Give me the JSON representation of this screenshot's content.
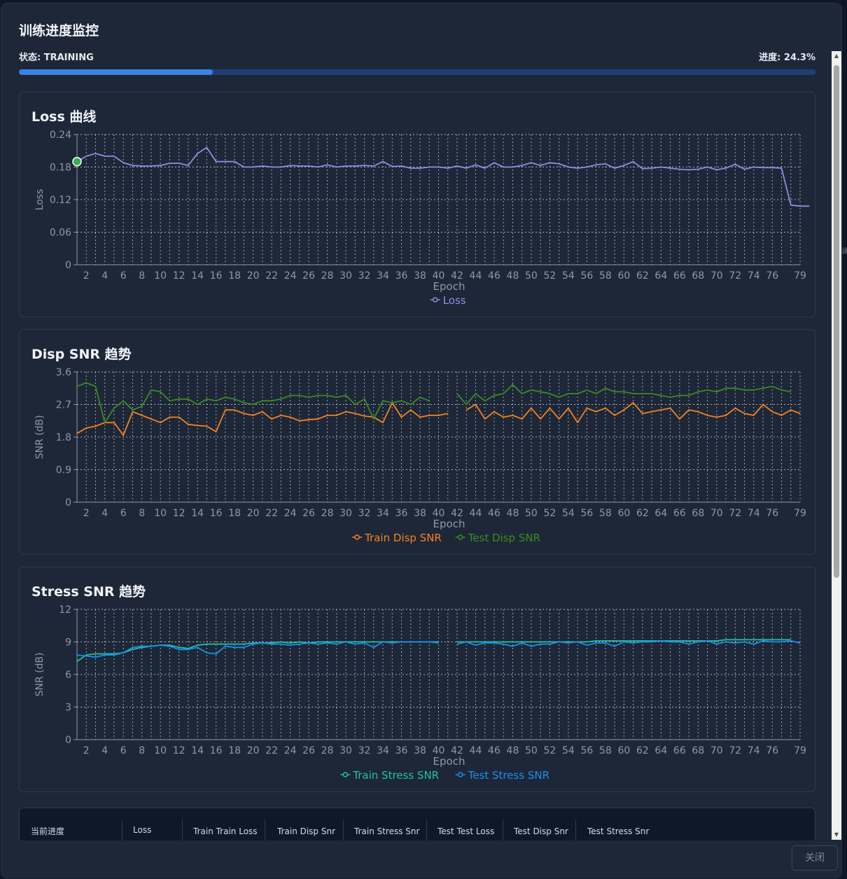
{
  "modal": {
    "title": "训练进度监控",
    "status_label": "状态: TRAINING",
    "progress_label": "进度: 24.3%",
    "progress_fraction": 0.243,
    "close_label": "关闭"
  },
  "epochs_ticks": [
    "2",
    "4",
    "6",
    "8",
    "10",
    "12",
    "14",
    "16",
    "18",
    "20",
    "22",
    "24",
    "26",
    "28",
    "30",
    "32",
    "34",
    "36",
    "38",
    "40",
    "42",
    "44",
    "46",
    "48",
    "50",
    "52",
    "54",
    "56",
    "58",
    "60",
    "62",
    "64",
    "66",
    "68",
    "70",
    "72",
    "74",
    "76",
    "79"
  ],
  "charts": [
    {
      "id": "loss",
      "title": "Loss 曲线",
      "ylabel": "Loss",
      "xlabel": "Epoch",
      "ylim": [
        0,
        0.24
      ],
      "yticks": [
        "0",
        "0.06",
        "0.12",
        "0.18",
        "0.24"
      ],
      "series": [
        {
          "name": "Loss",
          "color": "#8a8fe0",
          "values": [
            0.19,
            0.2,
            0.205,
            0.2,
            0.2,
            0.188,
            0.183,
            0.182,
            0.182,
            0.183,
            0.187,
            0.187,
            0.183,
            0.205,
            0.216,
            0.19,
            0.19,
            0.19,
            0.18,
            0.18,
            0.182,
            0.18,
            0.18,
            0.183,
            0.182,
            0.182,
            0.18,
            0.184,
            0.18,
            0.182,
            0.182,
            0.183,
            0.182,
            0.19,
            0.181,
            0.182,
            0.178,
            0.178,
            0.18,
            0.18,
            0.178,
            0.182,
            0.178,
            0.184,
            0.178,
            0.188,
            0.18,
            0.18,
            0.183,
            0.188,
            0.183,
            0.188,
            0.186,
            0.18,
            0.178,
            0.18,
            0.184,
            0.186,
            0.178,
            0.183,
            0.19,
            0.177,
            0.178,
            0.18,
            0.178,
            0.176,
            0.175,
            0.176,
            0.18,
            0.175,
            0.178,
            0.185,
            0.176,
            0.18,
            0.179,
            0.179,
            0.178,
            0.11,
            0.108,
            0.108
          ]
        }
      ],
      "marker_first_point": true
    },
    {
      "id": "disp",
      "title": "Disp SNR 趋势",
      "ylabel": "SNR (dB)",
      "xlabel": "Epoch",
      "ylim": [
        0,
        3.6
      ],
      "yticks": [
        "0",
        "0.9",
        "1.8",
        "2.7",
        "3.6"
      ],
      "series": [
        {
          "name": "Train Disp SNR",
          "color": "#f5821f",
          "values": [
            1.9,
            2.05,
            2.1,
            2.2,
            2.2,
            1.85,
            2.5,
            2.4,
            2.3,
            2.2,
            2.35,
            2.35,
            2.15,
            2.12,
            2.1,
            1.95,
            2.55,
            2.55,
            2.45,
            2.4,
            2.5,
            2.3,
            2.4,
            2.35,
            2.25,
            2.28,
            2.3,
            2.4,
            2.4,
            2.5,
            2.45,
            2.38,
            2.35,
            2.2,
            2.75,
            2.35,
            2.55,
            2.35,
            2.4,
            2.4,
            2.45,
            null,
            2.55,
            2.7,
            2.3,
            2.5,
            2.35,
            2.4,
            2.3,
            2.6,
            2.3,
            2.6,
            2.3,
            2.6,
            2.2,
            2.6,
            2.5,
            2.6,
            2.4,
            2.55,
            2.75,
            2.45,
            2.5,
            2.55,
            2.6,
            2.3,
            2.55,
            2.5,
            2.4,
            2.35,
            2.4,
            2.6,
            2.45,
            2.4,
            2.7,
            2.5,
            2.4,
            2.55,
            2.45
          ]
        },
        {
          "name": "Test Disp SNR",
          "color": "#3d8b1f",
          "values": [
            3.2,
            3.3,
            3.2,
            2.2,
            2.6,
            2.8,
            2.55,
            2.65,
            3.1,
            3.05,
            2.8,
            2.85,
            2.85,
            2.7,
            2.85,
            2.8,
            2.9,
            2.85,
            2.75,
            2.7,
            2.8,
            2.8,
            2.85,
            2.95,
            2.95,
            2.9,
            2.95,
            2.95,
            2.9,
            2.95,
            2.7,
            2.85,
            2.3,
            2.8,
            2.75,
            2.8,
            2.7,
            2.9,
            2.8,
            null,
            null,
            3.0,
            2.7,
            3.0,
            2.8,
            2.95,
            3.0,
            3.25,
            3.0,
            3.1,
            3.05,
            3.0,
            2.9,
            3.0,
            3.0,
            3.1,
            3.0,
            3.15,
            3.05,
            3.05,
            3.0,
            3.0,
            3.0,
            2.95,
            2.9,
            2.95,
            2.95,
            3.05,
            3.1,
            3.05,
            3.15,
            3.15,
            3.1,
            3.1,
            3.15,
            3.2,
            3.1,
            3.05
          ]
        }
      ]
    },
    {
      "id": "stress",
      "title": "Stress SNR 趋势",
      "ylabel": "SNR (dB)",
      "xlabel": "Epoch",
      "ylim": [
        0,
        12
      ],
      "yticks": [
        "0",
        "3",
        "6",
        "9",
        "12"
      ],
      "series": [
        {
          "name": "Train Stress SNR",
          "color": "#1fc4a3",
          "values": [
            7.2,
            7.8,
            7.9,
            7.9,
            7.9,
            8.0,
            8.3,
            8.5,
            8.6,
            8.7,
            8.7,
            8.5,
            8.4,
            8.7,
            8.8,
            8.8,
            8.8,
            8.8,
            8.8,
            8.9,
            8.9,
            8.9,
            9.0,
            8.9,
            9.0,
            8.9,
            9.0,
            9.0,
            9.0,
            9.0,
            9.0,
            9.0,
            9.0,
            9.0,
            9.0,
            9.0,
            9.0,
            9.0,
            9.0,
            9.0,
            null,
            9.0,
            9.0,
            9.0,
            9.0,
            9.0,
            9.0,
            9.0,
            9.0,
            9.0,
            9.0,
            9.0,
            9.0,
            9.0,
            9.0,
            9.0,
            9.1,
            9.1,
            9.1,
            9.1,
            9.1,
            9.1,
            9.1,
            9.1,
            9.1,
            9.1,
            9.1,
            9.1,
            9.1,
            9.1,
            9.2,
            9.2,
            9.2,
            9.2,
            9.2,
            9.2,
            9.2,
            9.2
          ]
        },
        {
          "name": "Test Stress SNR",
          "color": "#1a8fef",
          "values": [
            7.8,
            7.7,
            7.6,
            7.8,
            7.8,
            8.0,
            8.5,
            8.6,
            8.6,
            8.7,
            8.6,
            8.3,
            8.3,
            8.5,
            8.0,
            7.9,
            8.6,
            8.5,
            8.5,
            8.8,
            8.9,
            8.8,
            8.8,
            8.7,
            8.8,
            8.9,
            8.8,
            8.9,
            8.8,
            9.0,
            8.8,
            8.9,
            8.5,
            9.0,
            8.9,
            9.0,
            9.0,
            9.0,
            9.0,
            8.9,
            null,
            8.8,
            9.0,
            8.7,
            8.9,
            8.9,
            8.8,
            8.6,
            8.9,
            8.6,
            8.8,
            8.8,
            9.0,
            8.9,
            9.0,
            8.7,
            8.9,
            8.9,
            8.6,
            9.0,
            8.9,
            9.0,
            9.0,
            9.1,
            9.0,
            9.0,
            8.8,
            9.0,
            9.1,
            8.8,
            9.0,
            8.9,
            9.0,
            8.8,
            9.1,
            9.0,
            9.0,
            9.1,
            8.9
          ]
        }
      ]
    }
  ],
  "table": {
    "headers": [
      "当前进度",
      "Loss",
      "Train Train Loss",
      "Train Disp Snr",
      "Train Stress Snr",
      "Test Test Loss",
      "Test Disp Snr",
      "Test Stress Snr"
    ]
  },
  "colors": {
    "accent": "#3c82e6",
    "progress_track": "#1f3f74",
    "background": "#1d2738"
  },
  "icons": {
    "scroll_up": "triangle-up",
    "scroll_down": "triangle-down"
  }
}
